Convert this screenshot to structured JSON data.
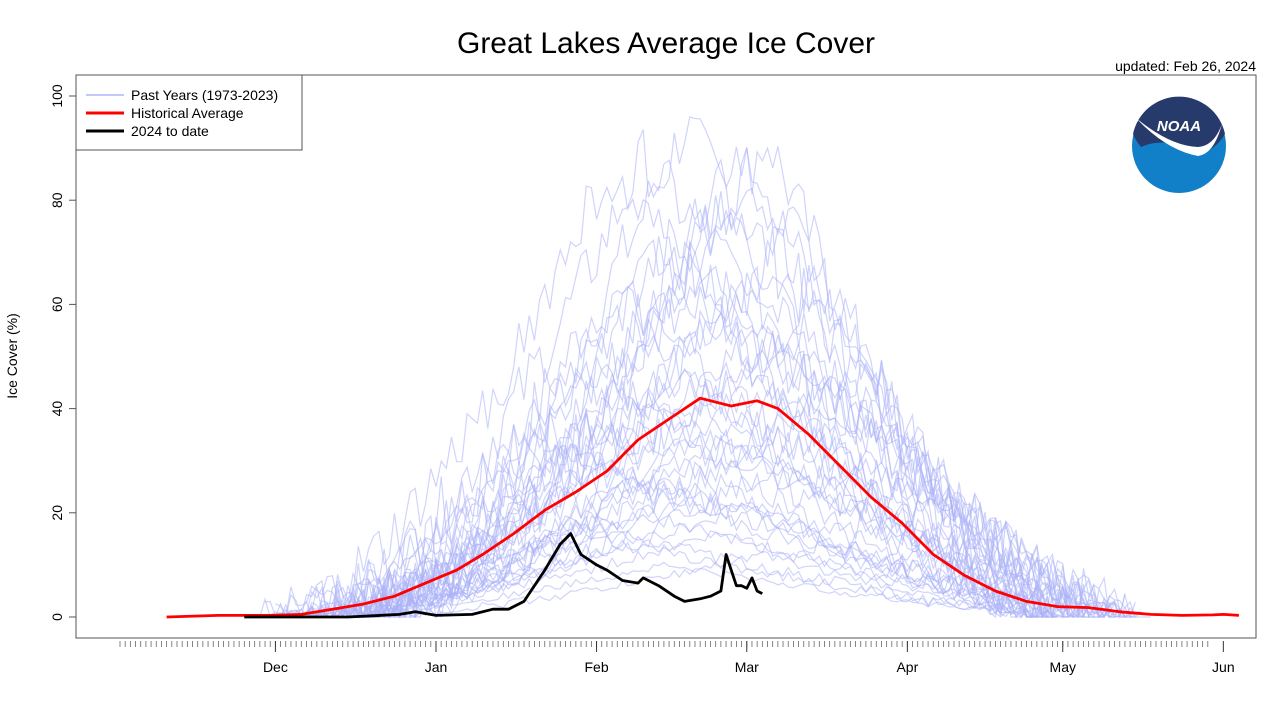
{
  "chart_data": {
    "type": "line",
    "title": "Great Lakes Average Ice Cover",
    "subtitle": "updated: Feb 26, 2024",
    "xlabel": "",
    "ylabel": "Ice Cover (%)",
    "ylim": [
      0,
      100
    ],
    "y_ticks": [
      0,
      20,
      40,
      60,
      80,
      100
    ],
    "x_ticks": [
      "Dec",
      "Jan",
      "Feb",
      "Mar",
      "Apr",
      "May",
      "Jun"
    ],
    "grid": false,
    "legend_position": "top-left",
    "legend": [
      {
        "label": "Past Years (1973-2023)",
        "color": "#aab0f8"
      },
      {
        "label": "Historical Average",
        "color": "#ff0000"
      },
      {
        "label": "2024 to date",
        "color": "#000000"
      }
    ],
    "series": [
      {
        "name": "Historical Average",
        "color": "#ff0000",
        "points": [
          [
            "Nov 10",
            0
          ],
          [
            "Nov 20",
            0.3
          ],
          [
            "Nov 30",
            0.3
          ],
          [
            "Dec 6",
            0.5
          ],
          [
            "Dec 12",
            1.5
          ],
          [
            "Dec 18",
            2.5
          ],
          [
            "Dec 24",
            4
          ],
          [
            "Dec 30",
            6.5
          ],
          [
            "Jan 5",
            9
          ],
          [
            "Jan 10",
            12
          ],
          [
            "Jan 16",
            16
          ],
          [
            "Jan 22",
            20.5
          ],
          [
            "Jan 28",
            24
          ],
          [
            "Feb 3",
            28
          ],
          [
            "Feb 9",
            34
          ],
          [
            "Feb 15",
            38
          ],
          [
            "Feb 21",
            42
          ],
          [
            "Feb 27",
            40.5
          ],
          [
            "Mar 3",
            41.5
          ],
          [
            "Mar 7",
            40
          ],
          [
            "Mar 13",
            35
          ],
          [
            "Mar 19",
            29
          ],
          [
            "Mar 25",
            23
          ],
          [
            "Mar 31",
            18
          ],
          [
            "Apr 6",
            12
          ],
          [
            "Apr 12",
            8
          ],
          [
            "Apr 18",
            5
          ],
          [
            "Apr 24",
            3
          ],
          [
            "Apr 30",
            2
          ],
          [
            "May 6",
            1.8
          ],
          [
            "May 12",
            1
          ],
          [
            "May 18",
            0.5
          ],
          [
            "May 24",
            0.3
          ],
          [
            "May 30",
            0.4
          ],
          [
            "Jun 1",
            0.5
          ],
          [
            "Jun 4",
            0.3
          ]
        ]
      },
      {
        "name": "2024 to date",
        "color": "#000000",
        "points": [
          [
            "Nov 25",
            0
          ],
          [
            "Dec 5",
            0
          ],
          [
            "Dec 15",
            0
          ],
          [
            "Dec 25",
            0.5
          ],
          [
            "Dec 28",
            1
          ],
          [
            "Jan 1",
            0.3
          ],
          [
            "Jan 8",
            0.5
          ],
          [
            "Jan 12",
            1.5
          ],
          [
            "Jan 15",
            1.5
          ],
          [
            "Jan 18",
            3
          ],
          [
            "Jan 22",
            9
          ],
          [
            "Jan 25",
            14
          ],
          [
            "Jan 27",
            16
          ],
          [
            "Jan 29",
            12
          ],
          [
            "Feb 1",
            10
          ],
          [
            "Feb 3",
            9
          ],
          [
            "Feb 6",
            7
          ],
          [
            "Feb 9",
            6.5
          ],
          [
            "Feb 10",
            7.5
          ],
          [
            "Feb 13",
            6
          ],
          [
            "Feb 16",
            4
          ],
          [
            "Feb 18",
            3
          ],
          [
            "Feb 21",
            3.5
          ],
          [
            "Feb 23",
            4
          ],
          [
            "Feb 25",
            5
          ],
          [
            "Feb 26",
            12
          ],
          [
            "Feb 27",
            9
          ],
          [
            "Feb 28",
            6
          ],
          [
            "Feb 29",
            6
          ],
          [
            "Mar 1",
            5.5
          ],
          [
            "Mar 2",
            7.5
          ],
          [
            "Mar 3",
            5
          ],
          [
            "Mar 4",
            4.5
          ]
        ]
      },
      {
        "name": "Past Years (1973-2023)",
        "color": "#aab0f8",
        "peaks": [
          {
            "peak_date": "Feb 18",
            "peak": 94
          },
          {
            "peak_date": "Mar 5",
            "peak": 92
          },
          {
            "peak_date": "Mar 1",
            "peak": 86
          },
          {
            "peak_date": "Feb 10",
            "peak": 88
          },
          {
            "peak_date": "Feb 25",
            "peak": 80
          },
          {
            "peak_date": "Mar 10",
            "peak": 75
          },
          {
            "peak_date": "Feb 15",
            "peak": 72
          },
          {
            "peak_date": "Feb 20",
            "peak": 68
          },
          {
            "peak_date": "Mar 1",
            "peak": 65
          },
          {
            "peak_date": "Feb 5",
            "peak": 62
          },
          {
            "peak_date": "Feb 24",
            "peak": 58
          },
          {
            "peak_date": "Mar 8",
            "peak": 55
          },
          {
            "peak_date": "Feb 12",
            "peak": 52
          },
          {
            "peak_date": "Feb 28",
            "peak": 50
          },
          {
            "peak_date": "Jan 30",
            "peak": 48
          },
          {
            "peak_date": "Feb 18",
            "peak": 46
          },
          {
            "peak_date": "Mar 3",
            "peak": 44
          },
          {
            "peak_date": "Feb 8",
            "peak": 42
          },
          {
            "peak_date": "Feb 22",
            "peak": 40
          },
          {
            "peak_date": "Mar 12",
            "peak": 38
          },
          {
            "peak_date": "Feb 14",
            "peak": 36
          },
          {
            "peak_date": "Feb 26",
            "peak": 34
          },
          {
            "peak_date": "Jan 25",
            "peak": 32
          },
          {
            "peak_date": "Feb 16",
            "peak": 30
          },
          {
            "peak_date": "Mar 6",
            "peak": 28
          },
          {
            "peak_date": "Feb 4",
            "peak": 26
          },
          {
            "peak_date": "Feb 20",
            "peak": 24
          },
          {
            "peak_date": "Mar 2",
            "peak": 22
          },
          {
            "peak_date": "Feb 10",
            "peak": 20
          },
          {
            "peak_date": "Jan 28",
            "peak": 18
          },
          {
            "peak_date": "Feb 24",
            "peak": 16
          },
          {
            "peak_date": "Feb 6",
            "peak": 14
          },
          {
            "peak_date": "Mar 4",
            "peak": 12
          },
          {
            "peak_date": "Feb 14",
            "peak": 10
          },
          {
            "peak_date": "Jan 20",
            "peak": 35
          },
          {
            "peak_date": "Feb 2",
            "peak": 84
          },
          {
            "peak_date": "Mar 15",
            "peak": 60
          },
          {
            "peak_date": "Mar 20",
            "peak": 45
          },
          {
            "peak_date": "Feb 12",
            "peak": 70
          },
          {
            "peak_date": "Feb 27",
            "peak": 90
          }
        ]
      }
    ]
  },
  "logo": {
    "text": "NOAA",
    "navy": "#263a6b",
    "blue": "#1180c8"
  }
}
